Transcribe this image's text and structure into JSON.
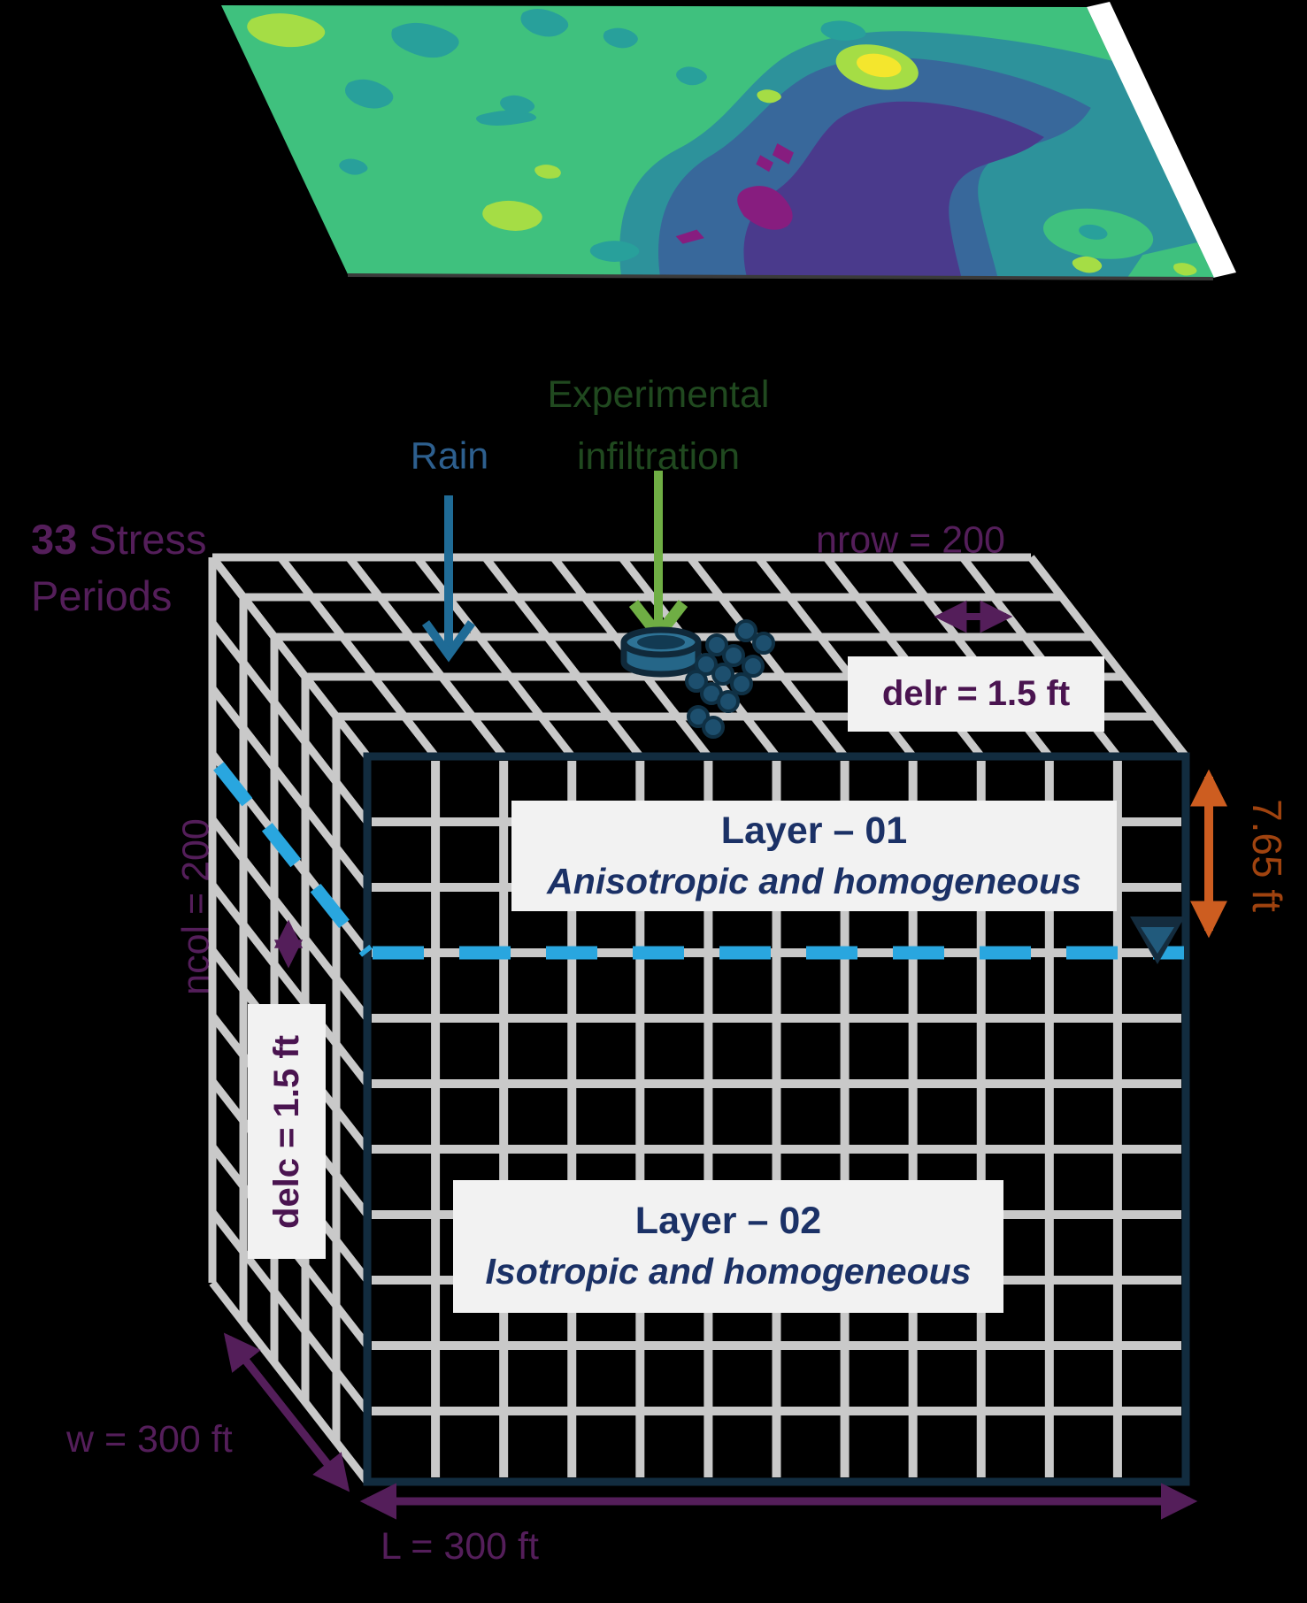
{
  "diagram": {
    "map": {
      "description": "plan-view terrain contour map (viridis colors)"
    },
    "labels": {
      "rain": "Rain",
      "infiltration_line1": "Experimental",
      "infiltration_line2": "infiltration",
      "stress_count": "33",
      "stress_rest": " Stress",
      "stress_line2": "Periods",
      "nrow": "nrow = 200",
      "ncol": "ncol = 200",
      "delr": "delr = 1.5 ft",
      "delc": "delc = 1.5 ft",
      "depth": "7.65 ft",
      "width": "w = 300 ft",
      "length": "L = 300 ft"
    },
    "layers": {
      "layer1": {
        "title": "Layer – 01",
        "subtitle": "Anisotropic and homogeneous"
      },
      "layer2": {
        "title": "Layer – 02",
        "subtitle": "Isotropic and homogeneous"
      }
    },
    "colors": {
      "annotation_purple": "#541e5a",
      "cell_label_purple": "#4a1450",
      "layer_text_navy": "#1b3166",
      "cube_frame_navy": "#122c3f",
      "grid_gray": "#c9c9c9",
      "water_table_cyan": "#29a6df",
      "rain_text_blue": "#2d5f8e",
      "rain_arrow_blue": "#1f6b96",
      "infiltration_text_green": "#20491f",
      "infiltration_arrow_green": "#6fae44",
      "depth_arrow_orange": "#cd5d20",
      "depth_text_orange": "#a0430f",
      "box_background": "#f2f2f2",
      "map_green": "#3fc17e",
      "map_teal": "#28a09b",
      "map_blue": "#38689b",
      "map_indigo": "#4a3a8c",
      "map_magenta": "#871d7f",
      "map_lime": "#a5dd45",
      "map_yellow": "#f4e62d"
    }
  }
}
